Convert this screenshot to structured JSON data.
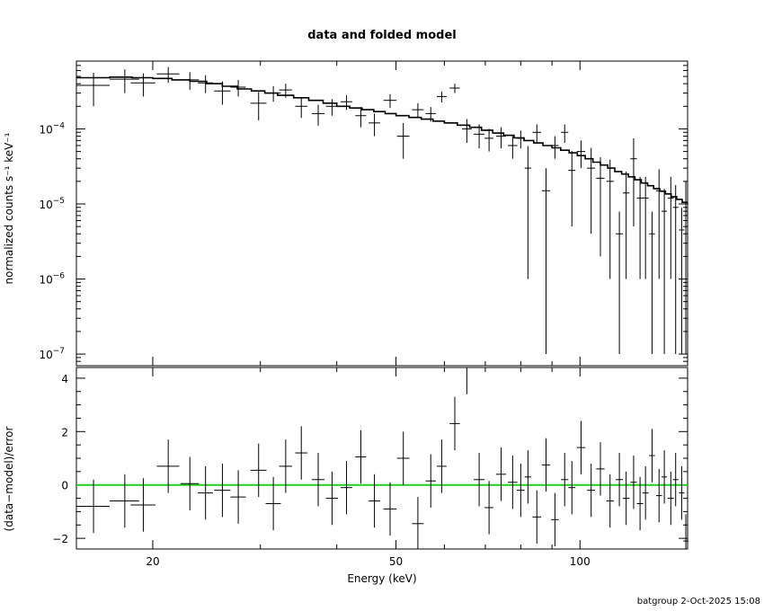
{
  "chart_data": [
    {
      "type": "scatter",
      "title": "data and folded model",
      "xlabel": "",
      "ylabel": "normalized counts s⁻¹ keV⁻¹",
      "xscale": "log",
      "yscale": "log",
      "xlim": [
        15,
        150
      ],
      "ylim": [
        7e-08,
        0.0008
      ],
      "y_ticks": [
        {
          "value": 1e-07,
          "base": "10",
          "exp": "−7"
        },
        {
          "value": 1e-06,
          "base": "10",
          "exp": "−6"
        },
        {
          "value": 1e-05,
          "base": "10",
          "exp": "−5"
        },
        {
          "value": 0.0001,
          "base": "10",
          "exp": "−4"
        }
      ],
      "series": [
        {
          "kind": "data",
          "points": [
            [
              16,
              0.00038,
              1,
              0.00018
            ],
            [
              18,
              0.00046,
              1,
              0.00016
            ],
            [
              19.3,
              0.00041,
              0.9,
              0.00014
            ],
            [
              21.2,
              0.00054,
              0.9,
              0.00013
            ],
            [
              23,
              0.00045,
              0.8,
              0.00012
            ],
            [
              24.4,
              0.00041,
              0.7,
              0.00011
            ],
            [
              26,
              0.00032,
              0.8,
              0.00011
            ],
            [
              27.6,
              0.00036,
              0.8,
              9e-05
            ],
            [
              29.8,
              0.00022,
              0.9,
              9e-05
            ],
            [
              31.5,
              0.0003,
              0.9,
              7e-05
            ],
            [
              33,
              0.00033,
              0.8,
              7e-05
            ],
            [
              35,
              0.0002,
              0.8,
              6e-05
            ],
            [
              37.3,
              0.00016,
              0.9,
              5e-05
            ],
            [
              39.3,
              0.0002,
              0.9,
              5e-05
            ],
            [
              41.5,
              0.00023,
              0.9,
              5e-05
            ],
            [
              43.8,
              0.00015,
              0.9,
              4.5e-05
            ],
            [
              46.1,
              0.00012,
              1,
              4e-05
            ],
            [
              48.9,
              0.00024,
              1.2,
              5e-05
            ],
            [
              51.4,
              8e-05,
              1.2,
              4e-05
            ],
            [
              54.3,
              0.00018,
              1.2,
              4e-05
            ],
            [
              57,
              0.00016,
              1.1,
              3.5e-05
            ],
            [
              59.4,
              0.00027,
              1.1,
              4.5e-05
            ],
            [
              62.4,
              0.00035,
              1.2,
              5e-05
            ],
            [
              65.3,
              0.0001,
              1.2,
              3.5e-05
            ],
            [
              68.4,
              8.5e-05,
              1.4,
              3e-05
            ],
            [
              71,
              7.5e-05,
              1.2,
              2.5e-05
            ],
            [
              74.3,
              8e-05,
              1.4,
              2.5e-05
            ],
            [
              77.6,
              6e-05,
              1.4,
              2e-05
            ],
            [
              80,
              7.5e-05,
              1.2,
              2e-05
            ],
            [
              82.2,
              3e-05,
              1,
              2.9e-05
            ],
            [
              85,
              9e-05,
              1.4,
              2.5e-05
            ],
            [
              88,
              1.5e-05,
              1.4,
              1.49e-05
            ],
            [
              91,
              6e-05,
              1.3,
              2e-05
            ],
            [
              94.4,
              9e-05,
              1.3,
              2.5e-05
            ],
            [
              97,
              2.8e-05,
              1.3,
              2.3e-05
            ],
            [
              100.4,
              5e-05,
              1.6,
              2e-05
            ],
            [
              104.3,
              3e-05,
              1.6,
              2.6e-05
            ],
            [
              108,
              2.2e-05,
              1.7,
              2e-05
            ],
            [
              112,
              2e-05,
              1.6,
              1.9e-05
            ],
            [
              116,
              4e-06,
              1.6,
              3.9e-06
            ],
            [
              119,
              1.4e-05,
              1.5,
              1.3e-05
            ],
            [
              122.4,
              4e-05,
              1.5,
              3.5e-05
            ],
            [
              125.4,
              1.2e-05,
              1.5,
              1.1e-05
            ],
            [
              128,
              1.2e-05,
              1.5,
              1.1e-05
            ],
            [
              131.2,
              4e-06,
              1.4,
              3.9e-06
            ],
            [
              134.7,
              1.5e-05,
              1.5,
              1.4e-05
            ],
            [
              137.4,
              8e-06,
              1.4,
              7.9e-06
            ],
            [
              140.8,
              1.2e-05,
              1.6,
              1.1e-05
            ],
            [
              143.4,
              9e-06,
              1.5,
              8.9e-06
            ],
            [
              146.7,
              4.5e-06,
              1.5,
              4.4e-06
            ],
            [
              149,
              1e-05,
              1.4,
              9.9e-06
            ]
          ]
        },
        {
          "kind": "model",
          "steps": [
            [
              15,
              0.00048
            ],
            [
              17,
              0.00049
            ],
            [
              18.5,
              0.00048
            ],
            [
              20,
              0.00047
            ],
            [
              21.5,
              0.00045
            ],
            [
              23,
              0.00043
            ],
            [
              24.5,
              0.0004
            ],
            [
              26,
              0.00037
            ],
            [
              27.5,
              0.00034
            ],
            [
              29,
              0.00032
            ],
            [
              30.5,
              0.0003
            ],
            [
              32,
              0.00028
            ],
            [
              34,
              0.00026
            ],
            [
              36,
              0.00024
            ],
            [
              38,
              0.00022
            ],
            [
              40,
              0.0002
            ],
            [
              42,
              0.00019
            ],
            [
              44,
              0.00018
            ],
            [
              46,
              0.00017
            ],
            [
              48,
              0.00016
            ],
            [
              50,
              0.00015
            ],
            [
              52.5,
              0.000142
            ],
            [
              55,
              0.000135
            ],
            [
              57.5,
              0.000127
            ],
            [
              60,
              0.00012
            ],
            [
              63,
              0.000112
            ],
            [
              66,
              0.000105
            ],
            [
              69,
              9.6e-05
            ],
            [
              72,
              8.8e-05
            ],
            [
              75,
              8.2e-05
            ],
            [
              78,
              7.6e-05
            ],
            [
              81,
              7e-05
            ],
            [
              84,
              6.5e-05
            ],
            [
              87,
              6e-05
            ],
            [
              90,
              5.6e-05
            ],
            [
              93,
              5.2e-05
            ],
            [
              96,
              4.8e-05
            ],
            [
              99,
              4.4e-05
            ],
            [
              102,
              4e-05
            ],
            [
              105,
              3.6e-05
            ],
            [
              108,
              3.3e-05
            ],
            [
              111,
              3e-05
            ],
            [
              114,
              2.7e-05
            ],
            [
              117,
              2.5e-05
            ],
            [
              120,
              2.3e-05
            ],
            [
              123,
              2.1e-05
            ],
            [
              126,
              1.9e-05
            ],
            [
              129,
              1.75e-05
            ],
            [
              132,
              1.6e-05
            ],
            [
              135,
              1.48e-05
            ],
            [
              138,
              1.36e-05
            ],
            [
              141,
              1.25e-05
            ],
            [
              144,
              1.15e-05
            ],
            [
              147,
              1.05e-05
            ],
            [
              150,
              9.5e-06
            ]
          ]
        }
      ]
    },
    {
      "type": "scatter",
      "title": "",
      "xlabel": "Energy (keV)",
      "ylabel": "(data−model)/error",
      "xscale": "log",
      "yscale": "linear",
      "xlim": [
        15,
        150
      ],
      "ylim": [
        -2.4,
        4.4
      ],
      "x_ticks": [
        {
          "value": 20,
          "label": "20"
        },
        {
          "value": 50,
          "label": "50"
        },
        {
          "value": 100,
          "label": "100"
        }
      ],
      "y_ticks": [
        {
          "value": -2,
          "label": "−2"
        },
        {
          "value": 0,
          "label": "0"
        },
        {
          "value": 2,
          "label": "2"
        },
        {
          "value": 4,
          "label": "4"
        }
      ],
      "zero_line_color": "#22cc22",
      "series": [
        {
          "kind": "residuals",
          "points": [
            [
              16,
              -0.8,
              1,
              1
            ],
            [
              18,
              -0.6,
              1,
              1
            ],
            [
              19.3,
              -0.75,
              0.9,
              1
            ],
            [
              21.2,
              0.7,
              0.9,
              1
            ],
            [
              23,
              0.05,
              0.8,
              1
            ],
            [
              24.4,
              -0.3,
              0.7,
              1
            ],
            [
              26,
              -0.2,
              0.8,
              1
            ],
            [
              27.6,
              -0.45,
              0.8,
              1
            ],
            [
              29.8,
              0.55,
              0.9,
              1
            ],
            [
              31.5,
              -0.7,
              0.9,
              1
            ],
            [
              33,
              0.7,
              0.8,
              1
            ],
            [
              35,
              1.2,
              0.8,
              1
            ],
            [
              37.3,
              0.2,
              0.9,
              1
            ],
            [
              39.3,
              -0.5,
              0.9,
              1
            ],
            [
              41.5,
              -0.1,
              0.9,
              1
            ],
            [
              43.8,
              1.05,
              0.9,
              1
            ],
            [
              46.1,
              -0.6,
              1,
              1
            ],
            [
              48.9,
              -0.9,
              1.2,
              1
            ],
            [
              51.4,
              1.0,
              1.2,
              1
            ],
            [
              54.3,
              -1.45,
              1.2,
              1
            ],
            [
              57,
              0.15,
              1.1,
              1
            ],
            [
              59.4,
              0.7,
              1.1,
              1
            ],
            [
              62.4,
              2.3,
              1.2,
              1
            ],
            [
              65.3,
              4.4,
              1.2,
              1
            ],
            [
              68.4,
              0.2,
              1.4,
              1
            ],
            [
              71,
              -0.85,
              1.2,
              1
            ],
            [
              74.3,
              0.4,
              1.4,
              1
            ],
            [
              77.6,
              0.1,
              1.4,
              1
            ],
            [
              80,
              -0.2,
              1.2,
              1
            ],
            [
              82.2,
              0.3,
              1,
              1
            ],
            [
              85,
              -1.2,
              1.4,
              1
            ],
            [
              88,
              0.75,
              1.4,
              1
            ],
            [
              91,
              -1.3,
              1.3,
              1
            ],
            [
              94.4,
              0.2,
              1.3,
              1
            ],
            [
              97,
              -0.1,
              1.3,
              1
            ],
            [
              100.4,
              1.4,
              1.6,
              1
            ],
            [
              104.3,
              -0.2,
              1.6,
              1
            ],
            [
              108,
              0.6,
              1.7,
              1
            ],
            [
              112,
              -0.6,
              1.6,
              1
            ],
            [
              116,
              0.2,
              1.6,
              1
            ],
            [
              119,
              -0.5,
              1.5,
              1
            ],
            [
              122.4,
              0.1,
              1.5,
              1
            ],
            [
              125.4,
              -0.7,
              1.5,
              1
            ],
            [
              128,
              -0.3,
              1.5,
              1
            ],
            [
              131.2,
              1.1,
              1.4,
              1
            ],
            [
              134.7,
              -0.4,
              1.5,
              1
            ],
            [
              137.4,
              0.3,
              1.4,
              1
            ],
            [
              140.8,
              -0.5,
              1.6,
              1
            ],
            [
              143.4,
              0.2,
              1.5,
              1
            ],
            [
              146.7,
              -0.3,
              1.5,
              1
            ],
            [
              149,
              -2.1,
              1.4,
              1
            ]
          ]
        }
      ]
    }
  ],
  "footer": {
    "credit": "batgroup  2-Oct-2025 15:08"
  }
}
